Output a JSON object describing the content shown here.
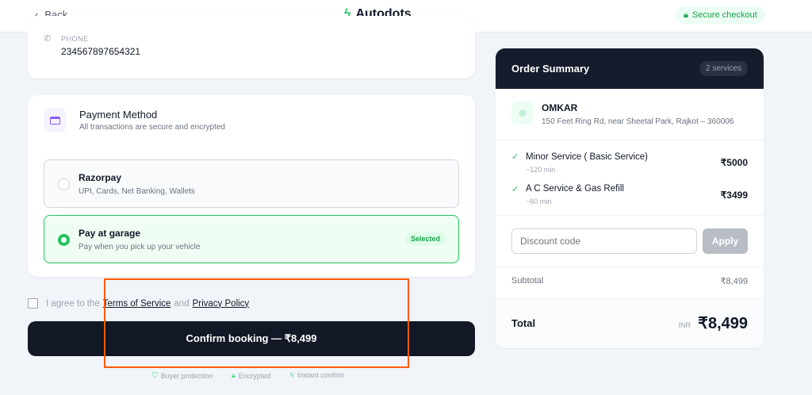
{
  "header": {
    "back_label": "Back",
    "brand": "Autodots",
    "secure_badge": "Secure checkout"
  },
  "contact": {
    "phone_label": "PHONE",
    "phone_value": "234567897654321"
  },
  "payment": {
    "title": "Payment Method",
    "subtitle": "All transactions are secure and encrypted",
    "options": [
      {
        "name": "Razorpay",
        "desc": "UPI, Cards, Net Banking, Wallets",
        "selected": false
      },
      {
        "name": "Pay at garage",
        "desc": "Pay when you pick up your vehicle",
        "selected": true,
        "badge": "Selected"
      }
    ]
  },
  "agree": {
    "prefix": "I agree to the",
    "terms": "Terms of Service",
    "and": "and",
    "privacy": "Privacy Policy"
  },
  "confirm_label": "Confirm booking — ₹8,499",
  "trust": [
    "Buyer protection",
    "Encrypted",
    "Instant confirm"
  ],
  "summary": {
    "title": "Order Summary",
    "count": "2 services",
    "garage": "OMKAR",
    "address": "150 Feet Ring Rd, near Sheetal Park, Rajkot – 360006",
    "items": [
      {
        "name": "Minor Service ( Basic Service)",
        "time": "~120 min",
        "price": "₹5000"
      },
      {
        "name": "A C Service & Gas Refill",
        "time": "~60 min",
        "price": "₹3499"
      }
    ],
    "discount_placeholder": "Discount code",
    "apply": "Apply",
    "subtotal_label": "Subtotal",
    "subtotal": "₹8,499",
    "total_label": "Total",
    "currency": "INR",
    "total": "₹8,499"
  },
  "colors": {
    "accent": "#22c55e",
    "dark": "#121826",
    "annotation": "#ff5a00"
  }
}
